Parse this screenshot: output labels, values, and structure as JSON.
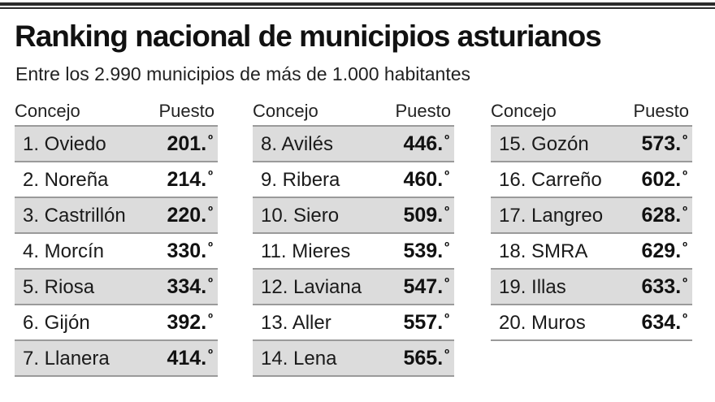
{
  "title": "Ranking nacional de municipios asturianos",
  "subtitle": "Entre los 2.990 municipios de más de 1.000 habitantes",
  "headers": {
    "concejo": "Concejo",
    "puesto": "Puesto"
  },
  "ordinal_mark": "º",
  "columns": [
    {
      "rows": [
        {
          "name": "1. Oviedo",
          "rank": "201.",
          "shaded": true
        },
        {
          "name": "2. Noreña",
          "rank": "214.",
          "shaded": false
        },
        {
          "name": "3. Castrillón",
          "rank": "220.",
          "shaded": true
        },
        {
          "name": "4. Morcín",
          "rank": "330.",
          "shaded": false
        },
        {
          "name": "5. Riosa",
          "rank": "334.",
          "shaded": true
        },
        {
          "name": "6. Gijón",
          "rank": "392.",
          "shaded": false
        },
        {
          "name": "7. Llanera",
          "rank": "414.",
          "shaded": true
        }
      ]
    },
    {
      "rows": [
        {
          "name": "8. Avilés",
          "rank": "446.",
          "shaded": true
        },
        {
          "name": "9. Ribera",
          "rank": "460.",
          "shaded": false
        },
        {
          "name": "10. Siero",
          "rank": "509.",
          "shaded": true
        },
        {
          "name": "11. Mieres",
          "rank": "539.",
          "shaded": false
        },
        {
          "name": "12. Laviana",
          "rank": "547.",
          "shaded": true
        },
        {
          "name": "13. Aller",
          "rank": "557.",
          "shaded": false
        },
        {
          "name": "14. Lena",
          "rank": "565.",
          "shaded": true
        }
      ]
    },
    {
      "rows": [
        {
          "name": "15. Gozón",
          "rank": "573.",
          "shaded": true
        },
        {
          "name": "16. Carreño",
          "rank": "602.",
          "shaded": false
        },
        {
          "name": "17. Langreo",
          "rank": "628.",
          "shaded": true
        },
        {
          "name": "18. SMRA",
          "rank": "629.",
          "shaded": false
        },
        {
          "name": "19. Illas",
          "rank": "633.",
          "shaded": true
        },
        {
          "name": "20. Muros",
          "rank": "634.",
          "shaded": false
        }
      ]
    }
  ]
}
